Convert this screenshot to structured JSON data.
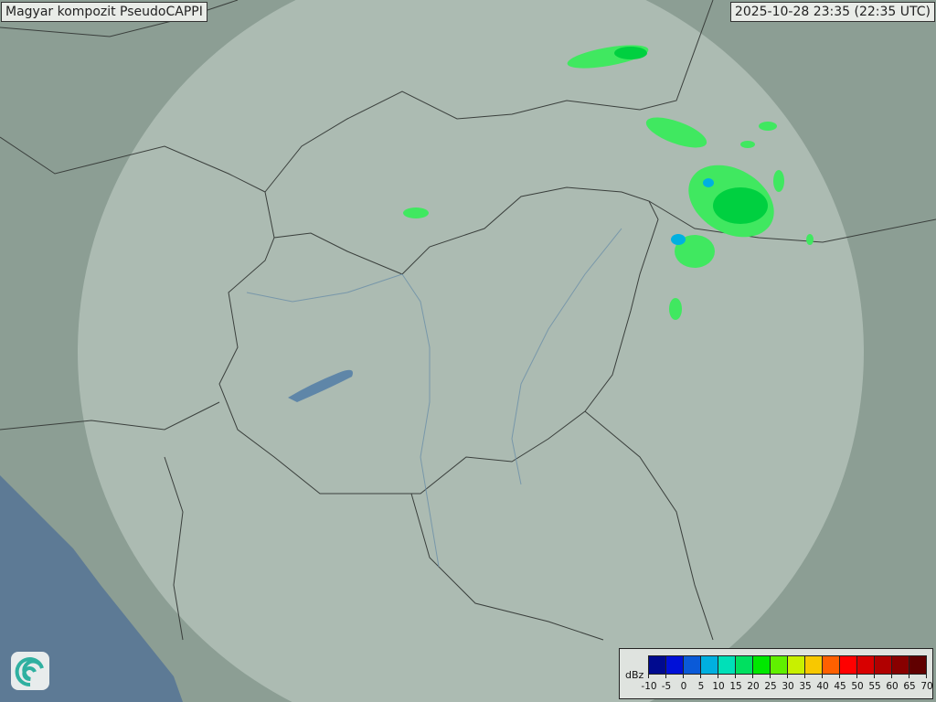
{
  "header": {
    "title": "Magyar kompozit  PseudoCAPPI",
    "timestamp": "2025-10-28 23:35 (22:35 UTC)"
  },
  "legend": {
    "unit": "dBz",
    "ticks": [
      "-10",
      "-5",
      "0",
      "5",
      "10",
      "15",
      "20",
      "25",
      "30",
      "35",
      "40",
      "45",
      "50",
      "55",
      "60",
      "65",
      "70"
    ],
    "colors": [
      "#000a8f",
      "#0010d8",
      "#0a5ad8",
      "#00b0e0",
      "#00e0b8",
      "#00e060",
      "#00e800",
      "#60f000",
      "#c8f000",
      "#f8c800",
      "#ff6000",
      "#ff0000",
      "#d80000",
      "#b00000",
      "#880000",
      "#600000"
    ]
  },
  "logo": {
    "icon": "swirl-logo-icon"
  },
  "colors": {
    "terrain": "#8c9e94",
    "sea": "#5d7a95",
    "radar_coverage": "#c8d6ce",
    "echo_light": "#40e860",
    "echo_mid": "#00d040",
    "echo_low": "#00b0e0"
  }
}
